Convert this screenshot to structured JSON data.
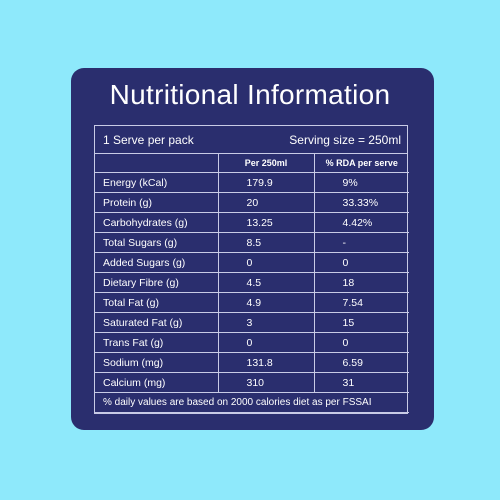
{
  "title": "Nutritional Information",
  "serve_info": {
    "servings": "1 Serve per pack",
    "serving_size": "Serving size = 250ml"
  },
  "headers": [
    "",
    "Per 250ml",
    "% RDA per serve"
  ],
  "rows": [
    {
      "nutrient": "Energy (kCal)",
      "per_250ml": "179.9",
      "rda": "9%"
    },
    {
      "nutrient": "Protein (g)",
      "per_250ml": "20",
      "rda": "33.33%"
    },
    {
      "nutrient": "Carbohydrates (g)",
      "per_250ml": "13.25",
      "rda": "4.42%"
    },
    {
      "nutrient": "Total Sugars (g)",
      "per_250ml": "8.5",
      "rda": "-"
    },
    {
      "nutrient": "Added Sugars (g)",
      "per_250ml": "0",
      "rda": "0"
    },
    {
      "nutrient": "Dietary Fibre (g)",
      "per_250ml": "4.5",
      "rda": "18"
    },
    {
      "nutrient": "Total Fat (g)",
      "per_250ml": "4.9",
      "rda": "7.54"
    },
    {
      "nutrient": "Saturated Fat (g)",
      "per_250ml": "3",
      "rda": "15"
    },
    {
      "nutrient": "Trans Fat (g)",
      "per_250ml": "0",
      "rda": "0"
    },
    {
      "nutrient": "Sodium (mg)",
      "per_250ml": "131.8",
      "rda": "6.59"
    },
    {
      "nutrient": "Calcium (mg)",
      "per_250ml": "310",
      "rda": "31"
    }
  ],
  "footnote": "% daily values are based on 2000 calories diet as per FSSAI",
  "colors": {
    "background": "#8ee9fb",
    "panel": "#2a2e6e",
    "text": "#ffffff",
    "grid": "#c8cbe6"
  }
}
